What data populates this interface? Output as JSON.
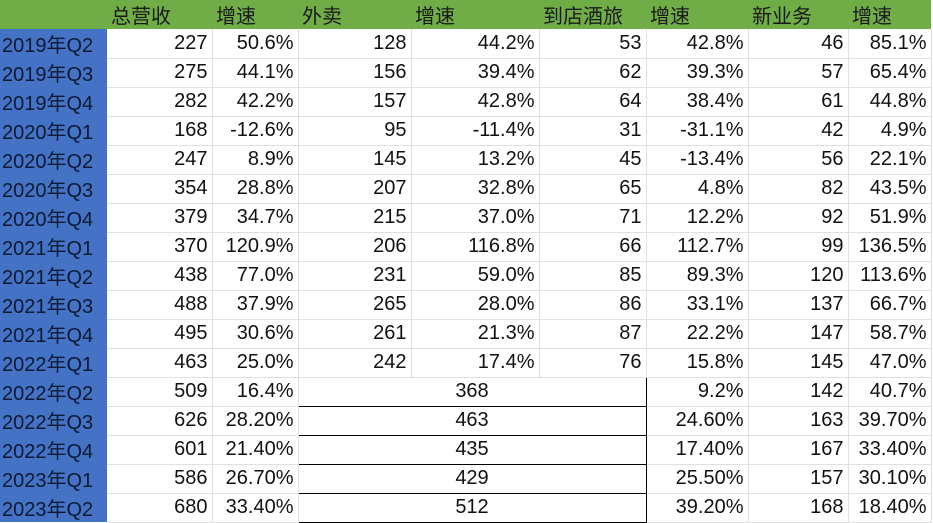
{
  "headers": [
    "",
    "总营收",
    "增速",
    "外卖",
    "增速",
    "到店酒旅",
    "增速",
    "新业务",
    "增速"
  ],
  "colors": {
    "header_bg": "#70ad47",
    "label_bg": "#4472c4"
  },
  "rows": [
    {
      "period": "2019年Q2",
      "revenue": "227",
      "revenue_growth": "50.6%",
      "delivery": "128",
      "delivery_growth": "44.2%",
      "instore": "53",
      "instore_growth": "42.8%",
      "new": "46",
      "new_growth": "85.1%"
    },
    {
      "period": "2019年Q3",
      "revenue": "275",
      "revenue_growth": "44.1%",
      "delivery": "156",
      "delivery_growth": "39.4%",
      "instore": "62",
      "instore_growth": "39.3%",
      "new": "57",
      "new_growth": "65.4%"
    },
    {
      "period": "2019年Q4",
      "revenue": "282",
      "revenue_growth": "42.2%",
      "delivery": "157",
      "delivery_growth": "42.8%",
      "instore": "64",
      "instore_growth": "38.4%",
      "new": "61",
      "new_growth": "44.8%"
    },
    {
      "period": "2020年Q1",
      "revenue": "168",
      "revenue_growth": "-12.6%",
      "delivery": "95",
      "delivery_growth": "-11.4%",
      "instore": "31",
      "instore_growth": "-31.1%",
      "new": "42",
      "new_growth": "4.9%"
    },
    {
      "period": "2020年Q2",
      "revenue": "247",
      "revenue_growth": "8.9%",
      "delivery": "145",
      "delivery_growth": "13.2%",
      "instore": "45",
      "instore_growth": "-13.4%",
      "new": "56",
      "new_growth": "22.1%"
    },
    {
      "period": "2020年Q3",
      "revenue": "354",
      "revenue_growth": "28.8%",
      "delivery": "207",
      "delivery_growth": "32.8%",
      "instore": "65",
      "instore_growth": "4.8%",
      "new": "82",
      "new_growth": "43.5%"
    },
    {
      "period": "2020年Q4",
      "revenue": "379",
      "revenue_growth": "34.7%",
      "delivery": "215",
      "delivery_growth": "37.0%",
      "instore": "71",
      "instore_growth": "12.2%",
      "new": "92",
      "new_growth": "51.9%"
    },
    {
      "period": "2021年Q1",
      "revenue": "370",
      "revenue_growth": "120.9%",
      "delivery": "206",
      "delivery_growth": "116.8%",
      "instore": "66",
      "instore_growth": "112.7%",
      "new": "99",
      "new_growth": "136.5%"
    },
    {
      "period": "2021年Q2",
      "revenue": "438",
      "revenue_growth": "77.0%",
      "delivery": "231",
      "delivery_growth": "59.0%",
      "instore": "85",
      "instore_growth": "89.3%",
      "new": "120",
      "new_growth": "113.6%"
    },
    {
      "period": "2021年Q3",
      "revenue": "488",
      "revenue_growth": "37.9%",
      "delivery": "265",
      "delivery_growth": "28.0%",
      "instore": "86",
      "instore_growth": "33.1%",
      "new": "137",
      "new_growth": "66.7%"
    },
    {
      "period": "2021年Q4",
      "revenue": "495",
      "revenue_growth": "30.6%",
      "delivery": "261",
      "delivery_growth": "21.3%",
      "instore": "87",
      "instore_growth": "22.2%",
      "new": "147",
      "new_growth": "58.7%"
    },
    {
      "period": "2022年Q1",
      "revenue": "463",
      "revenue_growth": "25.0%",
      "delivery": "242",
      "delivery_growth": "17.4%",
      "instore": "76",
      "instore_growth": "15.8%",
      "new": "145",
      "new_growth": "47.0%"
    },
    {
      "period": "2022年Q2",
      "revenue": "509",
      "revenue_growth": "16.4%",
      "merged": "368",
      "instore_growth": "9.2%",
      "new": "142",
      "new_growth": "40.7%"
    },
    {
      "period": "2022年Q3",
      "revenue": "626",
      "revenue_growth": "28.20%",
      "merged": "463",
      "instore_growth": "24.60%",
      "new": "163",
      "new_growth": "39.70%"
    },
    {
      "period": "2022年Q4",
      "revenue": "601",
      "revenue_growth": "21.40%",
      "merged": "435",
      "instore_growth": "17.40%",
      "new": "167",
      "new_growth": "33.40%"
    },
    {
      "period": "2023年Q1",
      "revenue": "586",
      "revenue_growth": "26.70%",
      "merged": "429",
      "instore_growth": "25.50%",
      "new": "157",
      "new_growth": "30.10%"
    },
    {
      "period": "2023年Q2",
      "revenue": "680",
      "revenue_growth": "33.40%",
      "merged": "512",
      "instore_growth": "39.20%",
      "new": "168",
      "new_growth": "18.40%"
    }
  ]
}
